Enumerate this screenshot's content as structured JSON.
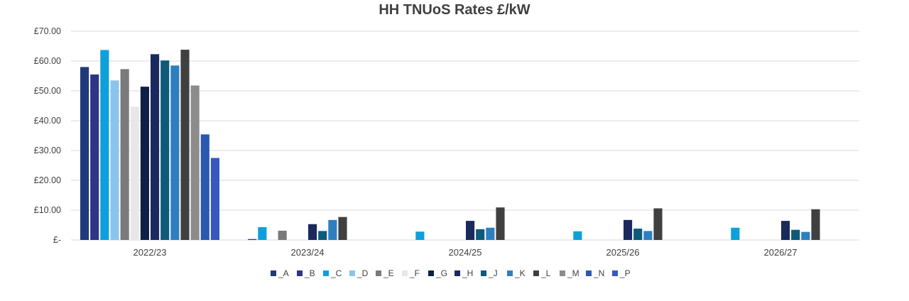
{
  "chart_data": {
    "type": "bar",
    "title": "HH TNUoS Rates £/kW",
    "xlabel": "",
    "ylabel": "",
    "ylim": [
      0,
      70
    ],
    "ytick_values": [
      0,
      10,
      20,
      30,
      40,
      50,
      60,
      70
    ],
    "ytick_labels": [
      "£-",
      "£10.00",
      "£20.00",
      "£30.00",
      "£40.00",
      "£50.00",
      "£60.00",
      "£70.00"
    ],
    "grid": "horizontal",
    "legend_position": "bottom",
    "categories": [
      "2022/23",
      "2023/24",
      "2024/25",
      "2025/26",
      "2026/27"
    ],
    "series": [
      {
        "name": "_A",
        "color": "#1F3A7A",
        "values": [
          58.0,
          0,
          0,
          0,
          0
        ]
      },
      {
        "name": "_B",
        "color": "#2E3585",
        "values": [
          55.5,
          0.3,
          0,
          0,
          0
        ]
      },
      {
        "name": "_C",
        "color": "#0EA0DB",
        "values": [
          63.7,
          4.3,
          2.8,
          2.9,
          4.1
        ]
      },
      {
        "name": "_D",
        "color": "#8AC4EA",
        "values": [
          53.5,
          0,
          0,
          0,
          0
        ]
      },
      {
        "name": "_E",
        "color": "#7A7A7A",
        "values": [
          57.3,
          3.1,
          0,
          0,
          0
        ]
      },
      {
        "name": "_F",
        "color": "#E7E7E7",
        "values": [
          44.7,
          0,
          0,
          0,
          0
        ]
      },
      {
        "name": "_G",
        "color": "#0F1F45",
        "values": [
          51.4,
          0,
          0,
          0,
          0
        ]
      },
      {
        "name": "_H",
        "color": "#1A2A5E",
        "values": [
          62.3,
          5.3,
          6.4,
          6.7,
          6.4
        ]
      },
      {
        "name": "_J",
        "color": "#0D5A7A",
        "values": [
          60.2,
          3.0,
          3.6,
          3.8,
          3.4
        ]
      },
      {
        "name": "_K",
        "color": "#2E7FC0",
        "values": [
          58.5,
          6.7,
          4.1,
          3.0,
          2.7
        ]
      },
      {
        "name": "_L",
        "color": "#404040",
        "values": [
          63.8,
          7.7,
          10.9,
          10.6,
          10.3
        ]
      },
      {
        "name": "_M",
        "color": "#8C8C8C",
        "values": [
          51.8,
          0,
          0,
          0,
          0
        ]
      },
      {
        "name": "_N",
        "color": "#2D58B0",
        "values": [
          35.4,
          0,
          0,
          0,
          0
        ]
      },
      {
        "name": "_P",
        "color": "#3858C0",
        "values": [
          27.5,
          0,
          0,
          0,
          0
        ]
      }
    ]
  },
  "colors": {
    "gridline": "#D9D9D9",
    "text": "#404040",
    "background": "#FFFFFF"
  }
}
